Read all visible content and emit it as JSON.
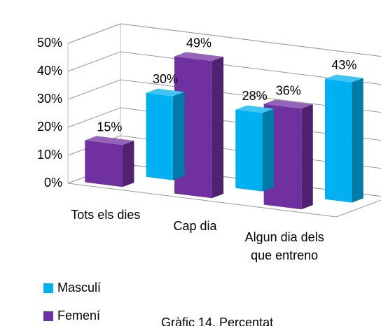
{
  "chart_data": {
    "type": "bar3d",
    "categories": [
      "Tots els dies",
      "Cap dia",
      "Algun dia dels que entreno"
    ],
    "series": [
      {
        "name": "Masculí",
        "color": "#00b0f0",
        "values": [
          30,
          28,
          43
        ],
        "value_labels": [
          "30%",
          "28%",
          "43%"
        ]
      },
      {
        "name": "Femení",
        "color": "#7030a0",
        "values": [
          15,
          49,
          36
        ],
        "value_labels": [
          "15%",
          "49%",
          "36%"
        ]
      }
    ],
    "ylim": [
      0,
      50
    ],
    "yticks": [
      {
        "value": 0,
        "label": "0%"
      },
      {
        "value": 10,
        "label": "10%"
      },
      {
        "value": 20,
        "label": "20%"
      },
      {
        "value": 30,
        "label": "30%"
      },
      {
        "value": 40,
        "label": "40%"
      },
      {
        "value": 50,
        "label": "50%"
      }
    ],
    "grid": true,
    "caption": "Gràfic 14. Percentat"
  }
}
